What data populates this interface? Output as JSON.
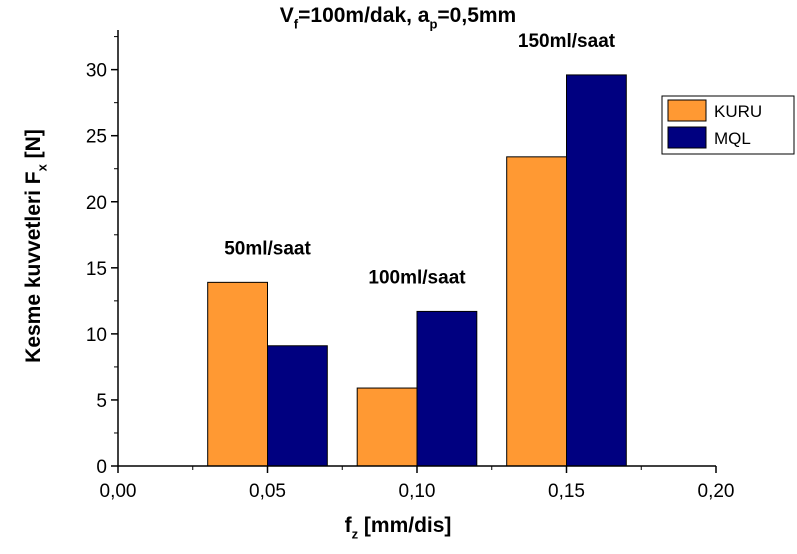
{
  "chart_data": {
    "type": "bar",
    "title": {
      "parts": [
        {
          "text": "V",
          "sub": false
        },
        {
          "text": "f",
          "sub": true
        },
        {
          "text": "=100m/dak, a",
          "sub": false
        },
        {
          "text": "p",
          "sub": true
        },
        {
          "text": "=0,5mm",
          "sub": false
        }
      ]
    },
    "xlabel": {
      "parts": [
        {
          "text": "f",
          "sub": false
        },
        {
          "text": "z",
          "sub": true
        },
        {
          "text": " [mm/dis]",
          "sub": false
        }
      ]
    },
    "ylabel": {
      "parts": [
        {
          "text": "Kesme kuvvetleri F",
          "sub": false
        },
        {
          "text": "x",
          "sub": true
        },
        {
          "text": " [N]",
          "sub": false
        }
      ]
    },
    "xlim": [
      0,
      0.2
    ],
    "ylim": [
      0,
      33
    ],
    "x_ticks": [
      0,
      0.05,
      0.1,
      0.15,
      0.2
    ],
    "x_tick_labels": [
      "0,00",
      "0,05",
      "0,10",
      "0,15",
      "0,20"
    ],
    "y_ticks": [
      0,
      5,
      10,
      15,
      20,
      25,
      30
    ],
    "y_tick_labels": [
      "0",
      "5",
      "10",
      "15",
      "20",
      "25",
      "30"
    ],
    "bar_width": 0.02,
    "groups": [
      {
        "x": 0.05,
        "annotation": "50ml/saat"
      },
      {
        "x": 0.1,
        "annotation": "100ml/saat"
      },
      {
        "x": 0.15,
        "annotation": "150ml/saat"
      }
    ],
    "series": [
      {
        "name": "KURU",
        "color": "#FF9933",
        "values": [
          13.9,
          5.9,
          23.4
        ]
      },
      {
        "name": "MQL",
        "color": "#000080",
        "values": [
          9.1,
          11.7,
          29.6
        ]
      }
    ],
    "legend_position": "top-right",
    "grid": false
  }
}
